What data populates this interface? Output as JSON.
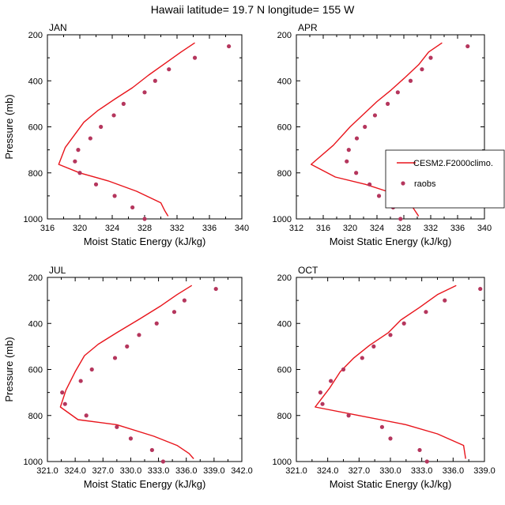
{
  "figure": {
    "title": "Hawaii  latitude= 19.7 N longitude= 155 W"
  },
  "legend": {
    "items": [
      {
        "label": "CESM2.F2000climo.",
        "style": "line"
      },
      {
        "label": "raobs",
        "style": "marker"
      }
    ]
  },
  "colors": {
    "model": "#e8141b",
    "obs": "#b5365d"
  },
  "chart_data": [
    {
      "type": "line",
      "panel": "JAN",
      "xlabel": "Moist Static Energy (kJ/kg)",
      "ylabel": "Pressure (mb)",
      "xlim": [
        316,
        340
      ],
      "ylim": [
        1000,
        200
      ],
      "xticks": [
        316,
        320,
        324,
        328,
        332,
        336,
        340
      ],
      "xtick_labels": [
        "316",
        "320",
        "324",
        "328",
        "332",
        "336",
        "340"
      ],
      "yticks": [
        200,
        400,
        600,
        800,
        1000
      ],
      "ytick_labels": [
        "200",
        "400",
        "600",
        "800",
        "1000"
      ],
      "series": [
        {
          "name": "CESM2.F2000climo.",
          "kind": "line",
          "points": [
            [
              334.2,
              235
            ],
            [
              332.5,
              275
            ],
            [
              330.5,
              325
            ],
            [
              328.5,
              375
            ],
            [
              326.5,
              430
            ],
            [
              324.3,
              480
            ],
            [
              322.2,
              530
            ],
            [
              320.5,
              580
            ],
            [
              318.2,
              690
            ],
            [
              317.4,
              763
            ],
            [
              320.0,
              800
            ],
            [
              323.5,
              835
            ],
            [
              327.0,
              880
            ],
            [
              330.0,
              930
            ],
            [
              330.5,
              965
            ],
            [
              330.9,
              988
            ]
          ]
        },
        {
          "name": "raobs",
          "kind": "scatter",
          "points": [
            [
              338.4,
              250
            ],
            [
              334.2,
              300
            ],
            [
              331.0,
              350
            ],
            [
              329.3,
              400
            ],
            [
              328.0,
              450
            ],
            [
              325.4,
              500
            ],
            [
              324.2,
              550
            ],
            [
              322.6,
              600
            ],
            [
              321.3,
              650
            ],
            [
              319.8,
              700
            ],
            [
              319.4,
              750
            ],
            [
              320.0,
              800
            ],
            [
              322.0,
              850
            ],
            [
              324.3,
              900
            ],
            [
              326.5,
              950
            ],
            [
              328.0,
              1000
            ]
          ]
        }
      ]
    },
    {
      "type": "line",
      "panel": "APR",
      "xlabel": "Moist Static Energy (kJ/kg)",
      "ylabel": "",
      "xlim": [
        312,
        340
      ],
      "ylim": [
        1000,
        200
      ],
      "xticks": [
        312,
        316,
        320,
        324,
        328,
        332,
        336,
        340
      ],
      "xtick_labels": [
        "312",
        "316",
        "320",
        "324",
        "328",
        "332",
        "336",
        "340"
      ],
      "yticks": [
        200,
        400,
        600,
        800,
        1000
      ],
      "ytick_labels": [
        "200",
        "400",
        "600",
        "800",
        "1000"
      ],
      "series": [
        {
          "name": "CESM2.F2000climo.",
          "kind": "line",
          "points": [
            [
              333.7,
              235
            ],
            [
              331.7,
              275
            ],
            [
              330.2,
              330
            ],
            [
              328.2,
              385
            ],
            [
              326.1,
              440
            ],
            [
              324.0,
              490
            ],
            [
              322.0,
              545
            ],
            [
              320.0,
              600
            ],
            [
              317.5,
              680
            ],
            [
              314.2,
              763
            ],
            [
              317.8,
              818
            ],
            [
              322.3,
              850
            ],
            [
              326.0,
              885
            ],
            [
              329.0,
              935
            ],
            [
              330.2,
              988
            ]
          ]
        },
        {
          "name": "raobs",
          "kind": "scatter",
          "points": [
            [
              337.5,
              250
            ],
            [
              332.0,
              300
            ],
            [
              330.7,
              350
            ],
            [
              329.0,
              400
            ],
            [
              327.1,
              450
            ],
            [
              325.6,
              500
            ],
            [
              323.7,
              550
            ],
            [
              322.2,
              600
            ],
            [
              321.0,
              650
            ],
            [
              319.8,
              700
            ],
            [
              319.5,
              750
            ],
            [
              320.9,
              800
            ],
            [
              322.9,
              850
            ],
            [
              324.3,
              900
            ],
            [
              326.4,
              950
            ],
            [
              327.5,
              1000
            ]
          ]
        }
      ]
    },
    {
      "type": "line",
      "panel": "JUL",
      "xlabel": "Moist Static Energy (kJ/kg)",
      "ylabel": "Pressure (mb)",
      "xlim": [
        321,
        342
      ],
      "ylim": [
        1000,
        200
      ],
      "xticks": [
        321,
        324,
        327,
        330,
        333,
        336,
        339,
        342
      ],
      "xtick_labels": [
        "321.0",
        "324.0",
        "327.0",
        "330.0",
        "333.0",
        "336.0",
        "339.0",
        "342.0"
      ],
      "yticks": [
        200,
        400,
        600,
        800,
        1000
      ],
      "ytick_labels": [
        "200",
        "400",
        "600",
        "800",
        "1000"
      ],
      "series": [
        {
          "name": "CESM2.F2000climo.",
          "kind": "line",
          "points": [
            [
              336.6,
              235
            ],
            [
              335.0,
              275
            ],
            [
              333.2,
              325
            ],
            [
              331.0,
              380
            ],
            [
              328.5,
              440
            ],
            [
              326.5,
              490
            ],
            [
              325.0,
              540
            ],
            [
              324.0,
              610
            ],
            [
              323.0,
              690
            ],
            [
              322.4,
              763
            ],
            [
              324.3,
              818
            ],
            [
              328.5,
              840
            ],
            [
              332.5,
              890
            ],
            [
              335.0,
              930
            ],
            [
              336.3,
              965
            ],
            [
              336.8,
              988
            ]
          ]
        },
        {
          "name": "raobs",
          "kind": "scatter",
          "points": [
            [
              339.2,
              250
            ],
            [
              335.8,
              300
            ],
            [
              334.7,
              350
            ],
            [
              332.8,
              400
            ],
            [
              330.9,
              450
            ],
            [
              329.6,
              500
            ],
            [
              328.3,
              550
            ],
            [
              325.8,
              600
            ],
            [
              324.6,
              650
            ],
            [
              322.6,
              700
            ],
            [
              322.9,
              750
            ],
            [
              325.2,
              800
            ],
            [
              328.5,
              850
            ],
            [
              330.0,
              900
            ],
            [
              332.3,
              950
            ],
            [
              333.5,
              1000
            ]
          ]
        }
      ]
    },
    {
      "type": "line",
      "panel": "OCT",
      "xlabel": "Moist Static Energy (kJ/kg)",
      "ylabel": "",
      "xlim": [
        321,
        339
      ],
      "ylim": [
        1000,
        200
      ],
      "xticks": [
        321,
        324,
        327,
        330,
        333,
        336,
        339
      ],
      "xtick_labels": [
        "321.0",
        "324.0",
        "327.0",
        "330.0",
        "333.0",
        "336.0",
        "339.0"
      ],
      "yticks": [
        200,
        400,
        600,
        800,
        1000
      ],
      "ytick_labels": [
        "200",
        "400",
        "600",
        "800",
        "1000"
      ],
      "series": [
        {
          "name": "CESM2.F2000climo.",
          "kind": "line",
          "points": [
            [
              336.3,
              235
            ],
            [
              334.5,
              275
            ],
            [
              332.8,
              330
            ],
            [
              331.0,
              385
            ],
            [
              329.8,
              440
            ],
            [
              328.0,
              495
            ],
            [
              326.5,
              550
            ],
            [
              325.2,
              610
            ],
            [
              324.2,
              680
            ],
            [
              322.8,
              763
            ],
            [
              327.0,
              800
            ],
            [
              331.5,
              840
            ],
            [
              334.5,
              880
            ],
            [
              337.0,
              930
            ],
            [
              337.2,
              988
            ]
          ]
        },
        {
          "name": "raobs",
          "kind": "scatter",
          "points": [
            [
              338.6,
              250
            ],
            [
              335.2,
              300
            ],
            [
              333.4,
              350
            ],
            [
              331.3,
              400
            ],
            [
              330.0,
              450
            ],
            [
              328.4,
              500
            ],
            [
              327.3,
              550
            ],
            [
              325.5,
              600
            ],
            [
              324.3,
              650
            ],
            [
              323.3,
              700
            ],
            [
              323.5,
              750
            ],
            [
              326.0,
              800
            ],
            [
              329.2,
              850
            ],
            [
              330.0,
              900
            ],
            [
              332.8,
              950
            ],
            [
              333.5,
              1000
            ]
          ]
        }
      ]
    }
  ]
}
